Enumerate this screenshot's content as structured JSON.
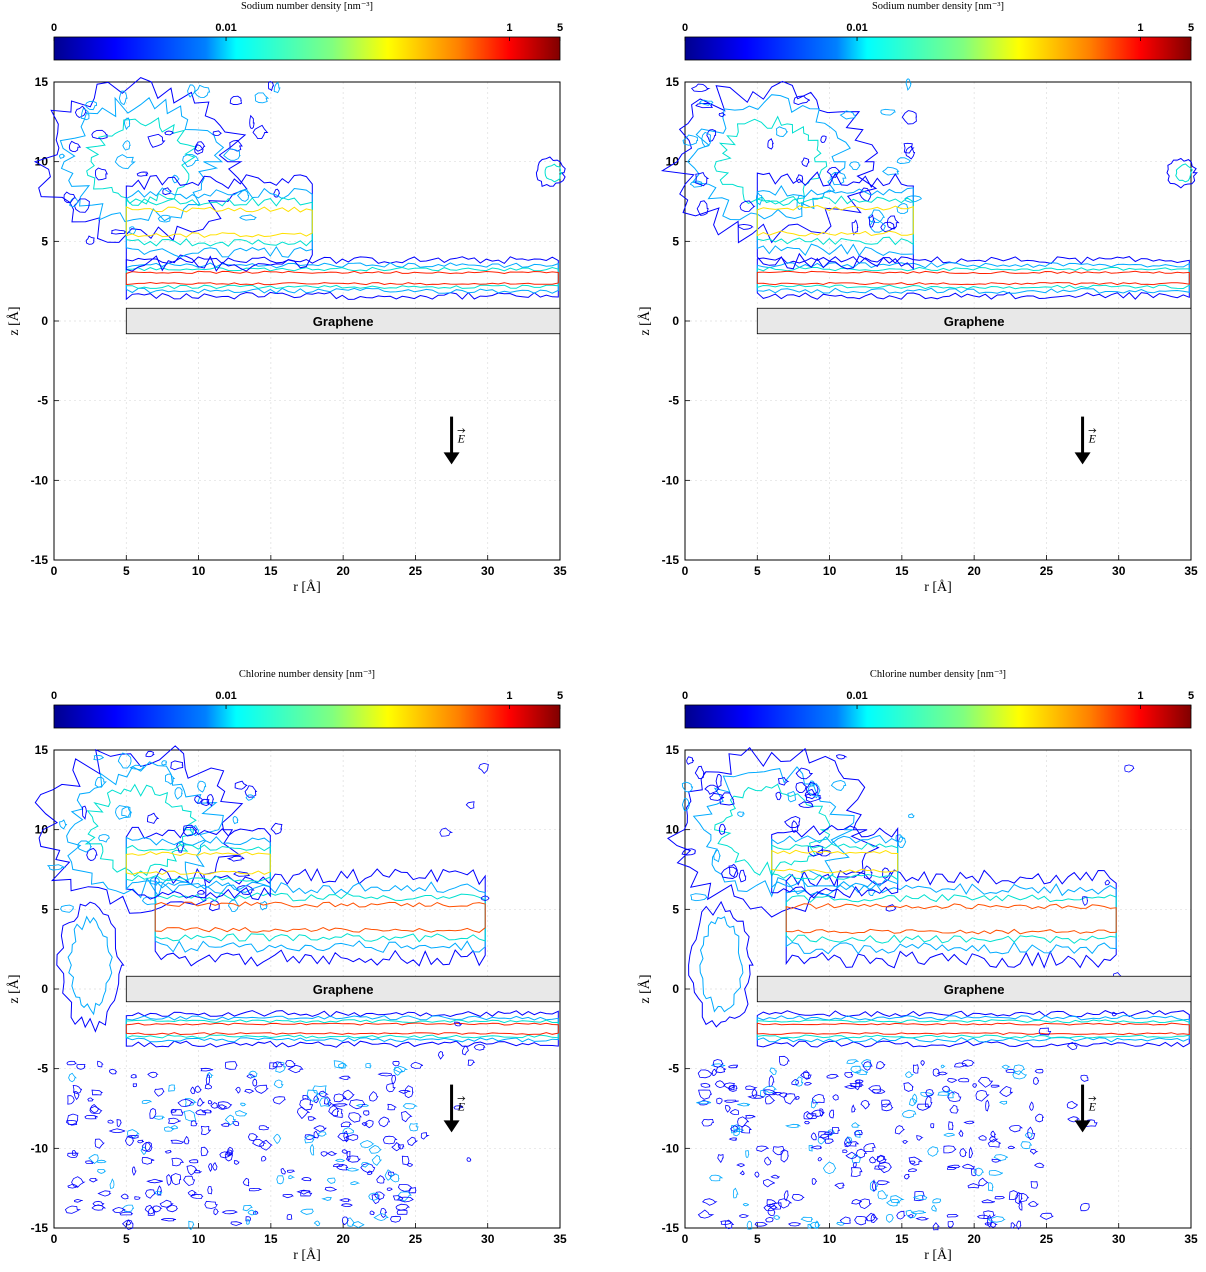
{
  "chart_data": [
    {
      "type": "heatmap",
      "subtype": "contour",
      "colorbar_title": "Sodium number density [nm⁻³]",
      "colorbar_ticks": [
        "0",
        "0.01",
        "1",
        "5"
      ],
      "colormap": "jet",
      "xlabel": "r [Å]",
      "ylabel": "z [Å]",
      "xlim": [
        0,
        35
      ],
      "ylim": [
        -15,
        15
      ],
      "xticks": [
        "0",
        "5",
        "10",
        "15",
        "20",
        "25",
        "30",
        "35"
      ],
      "yticks": [
        "15",
        "10",
        "5",
        "0",
        "-5",
        "-10",
        "-15"
      ],
      "grid": true,
      "slab": {
        "label": "Graphene",
        "x": [
          5,
          35
        ],
        "z": [
          -0.8,
          0.8
        ]
      },
      "arrow": {
        "label": "E",
        "x": 27.5,
        "z": [
          -6,
          -9
        ]
      },
      "layers": [
        {
          "level": 1.0,
          "color": "#ff2000",
          "x": [
            5,
            35
          ],
          "z": 2.7,
          "height": 0.35
        },
        {
          "level": 0.1,
          "color": "#ffe000",
          "x": [
            5,
            18
          ],
          "z": 6.2,
          "height": 0.8
        }
      ]
    },
    {
      "type": "heatmap",
      "subtype": "contour",
      "colorbar_title": "Sodium number density [nm⁻³]",
      "colorbar_ticks": [
        "0",
        "0.01",
        "1",
        "5"
      ],
      "colormap": "jet",
      "xlabel": "r [Å]",
      "ylabel": "z [Å]",
      "xlim": [
        0,
        35
      ],
      "ylim": [
        -15,
        15
      ],
      "xticks": [
        "0",
        "5",
        "10",
        "15",
        "20",
        "25",
        "30",
        "35"
      ],
      "yticks": [
        "15",
        "10",
        "5",
        "0",
        "-5",
        "-10",
        "-15"
      ],
      "grid": true,
      "slab": {
        "label": "Graphene",
        "x": [
          5,
          35
        ],
        "z": [
          -0.8,
          0.8
        ]
      },
      "arrow": {
        "label": "E",
        "x": 27.5,
        "z": [
          -6,
          -9
        ]
      },
      "layers": [
        {
          "level": 1.0,
          "color": "#ff2000",
          "x": [
            5,
            35
          ],
          "z": 2.7,
          "height": 0.35
        },
        {
          "level": 0.1,
          "color": "#ffe000",
          "x": [
            5,
            16
          ],
          "z": 6.3,
          "height": 0.8
        }
      ]
    },
    {
      "type": "heatmap",
      "subtype": "contour",
      "colorbar_title": "Chlorine number density [nm⁻³]",
      "colorbar_ticks": [
        "0",
        "0.01",
        "1",
        "5"
      ],
      "colormap": "jet",
      "xlabel": "r [Å]",
      "ylabel": "z [Å]",
      "xlim": [
        0,
        35
      ],
      "ylim": [
        -15,
        15
      ],
      "xticks": [
        "0",
        "5",
        "10",
        "15",
        "20",
        "25",
        "30",
        "35"
      ],
      "yticks": [
        "15",
        "10",
        "5",
        "0",
        "-5",
        "-10",
        "-15"
      ],
      "grid": true,
      "slab": {
        "label": "Graphene",
        "x": [
          5,
          35
        ],
        "z": [
          -0.8,
          0.8
        ]
      },
      "arrow": {
        "label": "E",
        "x": 27.5,
        "z": [
          -6,
          -9
        ]
      },
      "layers": [
        {
          "level": 1.0,
          "color": "#ff2000",
          "x": [
            5,
            35
          ],
          "z": -2.5,
          "height": 0.3
        },
        {
          "level": 1.0,
          "color": "#ff5000",
          "x": [
            7,
            30
          ],
          "z": 4.5,
          "height": 0.8
        },
        {
          "level": 0.1,
          "color": "#ffe000",
          "x": [
            5,
            15
          ],
          "z": 7.9,
          "height": 0.6
        }
      ]
    },
    {
      "type": "heatmap",
      "subtype": "contour",
      "colorbar_title": "Chlorine number density [nm⁻³]",
      "colorbar_ticks": [
        "0",
        "0.01",
        "1",
        "5"
      ],
      "colormap": "jet",
      "xlabel": "r [Å]",
      "ylabel": "z [Å]",
      "xlim": [
        0,
        35
      ],
      "ylim": [
        -15,
        15
      ],
      "xticks": [
        "0",
        "5",
        "10",
        "15",
        "20",
        "25",
        "30",
        "35"
      ],
      "yticks": [
        "15",
        "10",
        "5",
        "0",
        "-5",
        "-10",
        "-15"
      ],
      "grid": true,
      "slab": {
        "label": "Graphene",
        "x": [
          5,
          35
        ],
        "z": [
          -0.8,
          0.8
        ]
      },
      "arrow": {
        "label": "E",
        "x": 27.5,
        "z": [
          -6,
          -9
        ]
      },
      "layers": [
        {
          "level": 1.0,
          "color": "#ff2000",
          "x": [
            5,
            35
          ],
          "z": -2.5,
          "height": 0.3
        },
        {
          "level": 1.0,
          "color": "#ff5000",
          "x": [
            7,
            30
          ],
          "z": 4.4,
          "height": 0.8
        },
        {
          "level": 0.1,
          "color": "#ffe000",
          "x": [
            6,
            15
          ],
          "z": 8.0,
          "height": 0.6
        }
      ]
    }
  ],
  "colors": {
    "jet": [
      "#00008f",
      "#0000ff",
      "#0080ff",
      "#00ffff",
      "#80ff80",
      "#ffff00",
      "#ff8000",
      "#ff0000",
      "#800000"
    ],
    "contour_outer": "#0000ff",
    "contour_mid": "#00aaff",
    "contour_inner": "#00e0d0",
    "slab_fill": "#e8e8e8",
    "grid": "#dddddd",
    "arrow": "#000000"
  }
}
